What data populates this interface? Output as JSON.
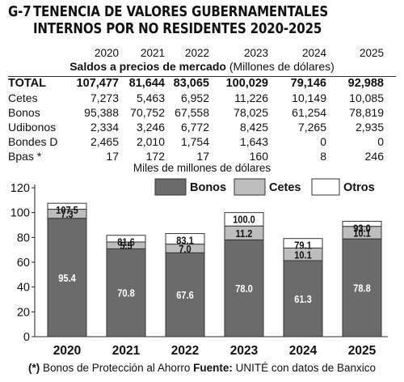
{
  "header": {
    "code": "G-7",
    "title_line1": "TENENCIA DE VALORES GUBERNAMENTALES",
    "title_line2": "INTERNOS POR NO RESIDENTES 2020-2025"
  },
  "table": {
    "subtitle_bold": "Saldos a precios de mercado",
    "subtitle_units": "(Millones de dólares)",
    "years": [
      "2020",
      "2021",
      "2022",
      "2023",
      "2024",
      "2025"
    ],
    "rows": [
      {
        "label": "TOTAL",
        "values": [
          "107,477",
          "81,644",
          "83,065",
          "100,029",
          "79,146",
          "92,988"
        ]
      },
      {
        "label": "Cetes",
        "values": [
          "7,273",
          "5,463",
          "6,952",
          "11,226",
          "10,149",
          "10,085"
        ]
      },
      {
        "label": "Bonos",
        "values": [
          "95,388",
          "70,752",
          "67,558",
          "78,025",
          "61,254",
          "78,819"
        ]
      },
      {
        "label": "Udibonos",
        "values": [
          "2,334",
          "3,246",
          "6,772",
          "8,425",
          "7,265",
          "2,935"
        ]
      },
      {
        "label": "Bondes D",
        "values": [
          "2,465",
          "2,010",
          "1,754",
          "1,643",
          "0",
          "0"
        ]
      },
      {
        "label": "Bpas *",
        "values": [
          "17",
          "172",
          "17",
          "160",
          "8",
          "246"
        ]
      }
    ]
  },
  "chart_data": {
    "type": "bar",
    "stacked": true,
    "title": "Miles de millones de dólares",
    "categories": [
      "2020",
      "2021",
      "2022",
      "2023",
      "2024",
      "2025"
    ],
    "series": [
      {
        "name": "Bonos",
        "values": [
          95.4,
          70.8,
          67.6,
          78.0,
          61.3,
          78.8
        ],
        "labels": [
          "95.4",
          "70.8",
          "67.6",
          "78.0",
          "61.3",
          "78.8"
        ],
        "color": "#6b6b6b"
      },
      {
        "name": "Cetes",
        "values": [
          7.3,
          5.5,
          7.0,
          11.2,
          10.1,
          10.1
        ],
        "labels": [
          "7.3",
          "5.5",
          "7.0",
          "11.2",
          "10.1",
          "10.1"
        ],
        "color": "#bdbdbd"
      },
      {
        "name": "Otros",
        "values": [
          4.8,
          5.4,
          8.5,
          10.8,
          7.7,
          4.1
        ],
        "color": "#ffffff"
      }
    ],
    "totals": [
      "107.5",
      "81.6",
      "83.1",
      "100.0",
      "79.1",
      "93.0"
    ],
    "y_ticks": [
      "0",
      "20",
      "40",
      "60",
      "80",
      "100",
      "120"
    ],
    "ylim": [
      0,
      120
    ],
    "legend_position": "top-right",
    "grid": false
  },
  "footnote": {
    "marker": "(*)",
    "text": "Bonos de Protección al Ahorro",
    "source_label": "Fuente:",
    "source_text": "UNITÉ con datos de Banxico"
  }
}
